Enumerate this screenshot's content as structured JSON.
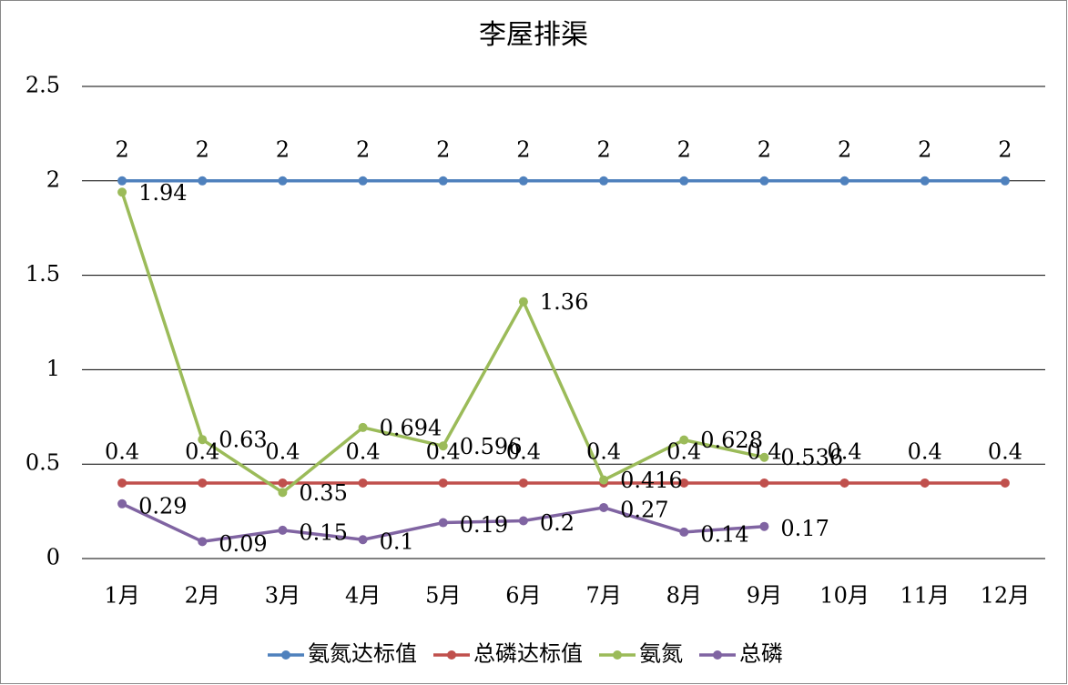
{
  "chart_data": {
    "type": "line",
    "title": "李屋排渠",
    "categories": [
      "1月",
      "2月",
      "3月",
      "4月",
      "5月",
      "6月",
      "7月",
      "8月",
      "9月",
      "10月",
      "11月",
      "12月"
    ],
    "series": [
      {
        "name": "氨氮达标值",
        "color": "#4f81bd",
        "values": [
          2,
          2,
          2,
          2,
          2,
          2,
          2,
          2,
          2,
          2,
          2,
          2
        ]
      },
      {
        "name": "总磷达标值",
        "color": "#c0504d",
        "values": [
          0.4,
          0.4,
          0.4,
          0.4,
          0.4,
          0.4,
          0.4,
          0.4,
          0.4,
          0.4,
          0.4,
          0.4
        ]
      },
      {
        "name": "氨氮",
        "color": "#9bbb59",
        "values": [
          1.94,
          0.63,
          0.35,
          0.694,
          0.596,
          1.36,
          0.416,
          0.628,
          0.536,
          null,
          null,
          null
        ]
      },
      {
        "name": "总磷",
        "color": "#8064a2",
        "values": [
          0.29,
          0.09,
          0.15,
          0.1,
          0.19,
          0.2,
          0.27,
          0.14,
          0.17,
          null,
          null,
          null
        ]
      }
    ],
    "ylim": [
      0,
      2.5
    ],
    "yticks": [
      0,
      0.5,
      1,
      1.5,
      2,
      2.5
    ],
    "grid": true,
    "legend": "bottom"
  }
}
